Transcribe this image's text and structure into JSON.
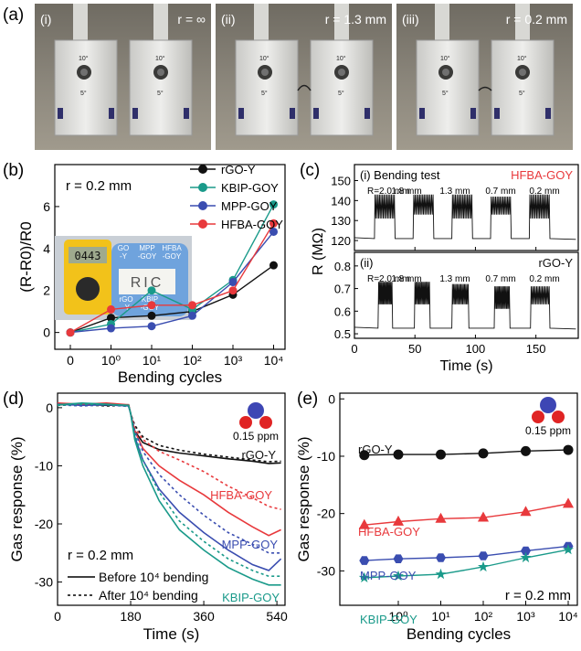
{
  "panels": {
    "a": {
      "label": "(a)",
      "photos": [
        {
          "index": "(i)",
          "radius": "r = ∞"
        },
        {
          "index": "(ii)",
          "radius": "r = 1.3 mm"
        },
        {
          "index": "(iii)",
          "radius": "r = 0.2 mm"
        }
      ],
      "fixture_marks": [
        "10°",
        "10°",
        "5°",
        "5°"
      ]
    },
    "b": {
      "label": "(b)",
      "condition": "r = 0.2 mm",
      "inset": {
        "display": "0443",
        "paper_text": "RIC",
        "labels_top": [
          "GO\n-Y",
          "MPP\n-GOY",
          "HFBA\n-GOY"
        ],
        "labels_bottom": [
          "rGO\n-Y",
          "KBIP\n-GOY"
        ]
      }
    },
    "c": {
      "label": "(c)",
      "top_title": "(i) Bending test",
      "top_sample": "HFBA-GOY",
      "bottom_title": "(ii)",
      "bottom_sample": "rGO-Y",
      "segment_labels": [
        "R=2.0 mm",
        "1.8 mm",
        "1.3 mm",
        "0.7 mm",
        "0.2 mm"
      ]
    },
    "d": {
      "label": "(d)",
      "conc": "0.15 ppm",
      "condition": "r = 0.2 mm",
      "legend": [
        "Before 10⁴ bending",
        "After 10⁴ bending"
      ]
    },
    "e": {
      "label": "(e)",
      "conc": "0.15 ppm",
      "condition": "r = 0.2 mm"
    }
  },
  "colors": {
    "rGO-Y": "#111111",
    "KBIP-GOY": "#1a9a8a",
    "MPP-GOY": "#3a4db0",
    "HFBA-GOY": "#e8393c"
  },
  "chart_data": [
    {
      "id": "b",
      "type": "line",
      "xlabel": "Bending cycles",
      "ylabel": "(R-R0)/R0",
      "x_ticks": [
        "0",
        "10⁰",
        "10¹",
        "10²",
        "10³",
        "10⁴"
      ],
      "y_ticks": [
        0,
        2,
        4,
        6
      ],
      "ylim": [
        -0.8,
        8
      ],
      "series": [
        {
          "name": "rGO-Y",
          "marker": "circle",
          "values": [
            0,
            0.7,
            0.8,
            1.0,
            1.8,
            3.2
          ]
        },
        {
          "name": "KBIP-GOY",
          "marker": "circle",
          "values": [
            0,
            0.4,
            2.0,
            1.1,
            2.5,
            6.1
          ]
        },
        {
          "name": "MPP-GOY",
          "marker": "circle",
          "values": [
            0,
            0.2,
            0.3,
            0.8,
            2.4,
            4.8
          ]
        },
        {
          "name": "HFBA-GOY",
          "marker": "circle",
          "values": [
            0,
            1.1,
            1.3,
            1.3,
            2.0,
            5.2
          ]
        }
      ]
    },
    {
      "id": "c-top",
      "type": "line",
      "ylabel": "R (MΩ)",
      "y_ticks": [
        120,
        130,
        140,
        150
      ],
      "ylim": [
        115,
        158
      ],
      "x_ticks": [
        0,
        50,
        100,
        150
      ],
      "xlim": [
        0,
        185
      ],
      "baseline": 121,
      "segments": [
        {
          "x0": 17,
          "x1": 33,
          "hi": 143,
          "lo": 131
        },
        {
          "x0": 49,
          "x1": 65,
          "hi": 143,
          "lo": 133
        },
        {
          "x0": 81,
          "x1": 97,
          "hi": 143,
          "lo": 131
        },
        {
          "x0": 113,
          "x1": 129,
          "hi": 142,
          "lo": 133
        },
        {
          "x0": 145,
          "x1": 161,
          "hi": 143,
          "lo": 131
        }
      ]
    },
    {
      "id": "c-bottom",
      "type": "line",
      "xlabel": "Time (s)",
      "ylabel": "R (MΩ)",
      "y_ticks": [
        0.5,
        0.6,
        0.7,
        0.8
      ],
      "ylim": [
        0.48,
        0.86
      ],
      "x_ticks": [
        0,
        50,
        100,
        150
      ],
      "xlim": [
        0,
        185
      ],
      "baseline": 0.525,
      "segments": [
        {
          "x0": 20,
          "x1": 31,
          "hi": 0.73,
          "lo": 0.63
        },
        {
          "x0": 50,
          "x1": 62,
          "hi": 0.73,
          "lo": 0.63
        },
        {
          "x0": 81,
          "x1": 94,
          "hi": 0.72,
          "lo": 0.63
        },
        {
          "x0": 116,
          "x1": 128,
          "hi": 0.71,
          "lo": 0.61
        },
        {
          "x0": 146,
          "x1": 161,
          "hi": 0.71,
          "lo": 0.63
        }
      ]
    },
    {
      "id": "d",
      "type": "line",
      "xlabel": "Time (s)",
      "ylabel": "Gas response (%)",
      "x_ticks": [
        0,
        180,
        360,
        540
      ],
      "xlim": [
        0,
        560
      ],
      "y_ticks": [
        0,
        -10,
        -20,
        -30
      ],
      "ylim": [
        -34,
        2.5
      ],
      "series": [
        {
          "name": "rGO-Y",
          "line": "solid",
          "x": [
            0,
            60,
            120,
            175,
            180,
            190,
            210,
            250,
            300,
            360,
            420,
            480,
            520,
            550
          ],
          "y": [
            0.5,
            0.6,
            0.4,
            0.5,
            -1,
            -4,
            -6,
            -7.2,
            -7.8,
            -8.3,
            -8.8,
            -9.2,
            -9.6,
            -9.5
          ]
        },
        {
          "name": "rGO-Y",
          "line": "dotted",
          "x": [
            0,
            60,
            120,
            175,
            180,
            190,
            210,
            250,
            300,
            360,
            420,
            480,
            520,
            550
          ],
          "y": [
            0.4,
            0.5,
            0.3,
            0.4,
            -1,
            -3,
            -5,
            -6.5,
            -7.3,
            -8,
            -8.5,
            -9,
            -9.3,
            -9.2
          ]
        },
        {
          "name": "HFBA-GOY",
          "line": "solid",
          "x": [
            0,
            60,
            120,
            175,
            180,
            190,
            210,
            250,
            300,
            360,
            420,
            480,
            520,
            550
          ],
          "y": [
            0.8,
            0.6,
            0.8,
            0.5,
            -1,
            -4,
            -7,
            -10,
            -12.5,
            -15,
            -18,
            -20.5,
            -22,
            -21
          ]
        },
        {
          "name": "HFBA-GOY",
          "line": "dotted",
          "x": [
            0,
            60,
            120,
            175,
            180,
            190,
            210,
            250,
            300,
            360,
            420,
            480,
            520,
            550
          ],
          "y": [
            0.6,
            0.5,
            0.7,
            0.4,
            -1,
            -3.5,
            -5.5,
            -7.5,
            -9,
            -11,
            -13.5,
            -15.5,
            -17,
            -17.5
          ]
        },
        {
          "name": "MPP-GOY",
          "line": "solid",
          "x": [
            0,
            60,
            120,
            175,
            180,
            190,
            210,
            250,
            300,
            360,
            420,
            480,
            520,
            550
          ],
          "y": [
            0.6,
            0.4,
            0.5,
            0.3,
            -1,
            -5,
            -9,
            -14,
            -18,
            -21.5,
            -24.5,
            -27,
            -28,
            -26
          ]
        },
        {
          "name": "MPP-GOY",
          "line": "dotted",
          "x": [
            0,
            60,
            120,
            175,
            180,
            190,
            210,
            250,
            300,
            360,
            420,
            480,
            520,
            550
          ],
          "y": [
            0.5,
            0.3,
            0.5,
            0.2,
            -1,
            -4,
            -7.5,
            -11.5,
            -15,
            -18.5,
            -21.5,
            -23.5,
            -25,
            -25
          ]
        },
        {
          "name": "KBIP-GOY",
          "line": "solid",
          "x": [
            0,
            60,
            120,
            175,
            180,
            190,
            210,
            250,
            300,
            360,
            420,
            480,
            520,
            550
          ],
          "y": [
            0.5,
            0.8,
            0.6,
            0.4,
            -1,
            -5.5,
            -10,
            -16,
            -21,
            -24.5,
            -27.5,
            -29.5,
            -30.5,
            -30.5
          ]
        },
        {
          "name": "KBIP-GOY",
          "line": "dotted",
          "x": [
            0,
            60,
            120,
            175,
            180,
            190,
            210,
            250,
            300,
            360,
            420,
            480,
            520,
            550
          ],
          "y": [
            0.4,
            0.6,
            0.5,
            0.3,
            -1,
            -4.5,
            -9,
            -14.5,
            -19.5,
            -23,
            -26,
            -28,
            -29,
            -29
          ]
        }
      ]
    },
    {
      "id": "e",
      "type": "line",
      "xlabel": "Bending cycles",
      "ylabel": "Gas response (%)",
      "x_ticks": [
        "10⁰",
        "10¹",
        "10²",
        "10³",
        "10⁴"
      ],
      "y_ticks": [
        0,
        -10,
        -20,
        -30
      ],
      "ylim": [
        -36,
        1
      ],
      "series": [
        {
          "name": "rGO-Y",
          "marker": "circle",
          "x_log": [
            -0.8,
            0,
            1,
            2,
            3,
            4
          ],
          "values": [
            -9.8,
            -9.7,
            -9.7,
            -9.5,
            -9.1,
            -8.9
          ]
        },
        {
          "name": "HFBA-GOY",
          "marker": "triangle",
          "x_log": [
            -0.8,
            0,
            1,
            2,
            3,
            4
          ],
          "values": [
            -22,
            -21.4,
            -20.9,
            -20.7,
            -19.7,
            -18.3
          ]
        },
        {
          "name": "MPP-GOY",
          "marker": "hexagon",
          "x_log": [
            -0.8,
            0,
            1,
            2,
            3,
            4
          ],
          "values": [
            -28.2,
            -27.9,
            -27.7,
            -27.4,
            -26.5,
            -25.7
          ]
        },
        {
          "name": "KBIP-GOY",
          "marker": "star",
          "x_log": [
            -0.8,
            0,
            1,
            2,
            3,
            4
          ],
          "values": [
            -31.2,
            -30.9,
            -30.6,
            -29.3,
            -27.7,
            -26.3
          ]
        }
      ]
    }
  ]
}
